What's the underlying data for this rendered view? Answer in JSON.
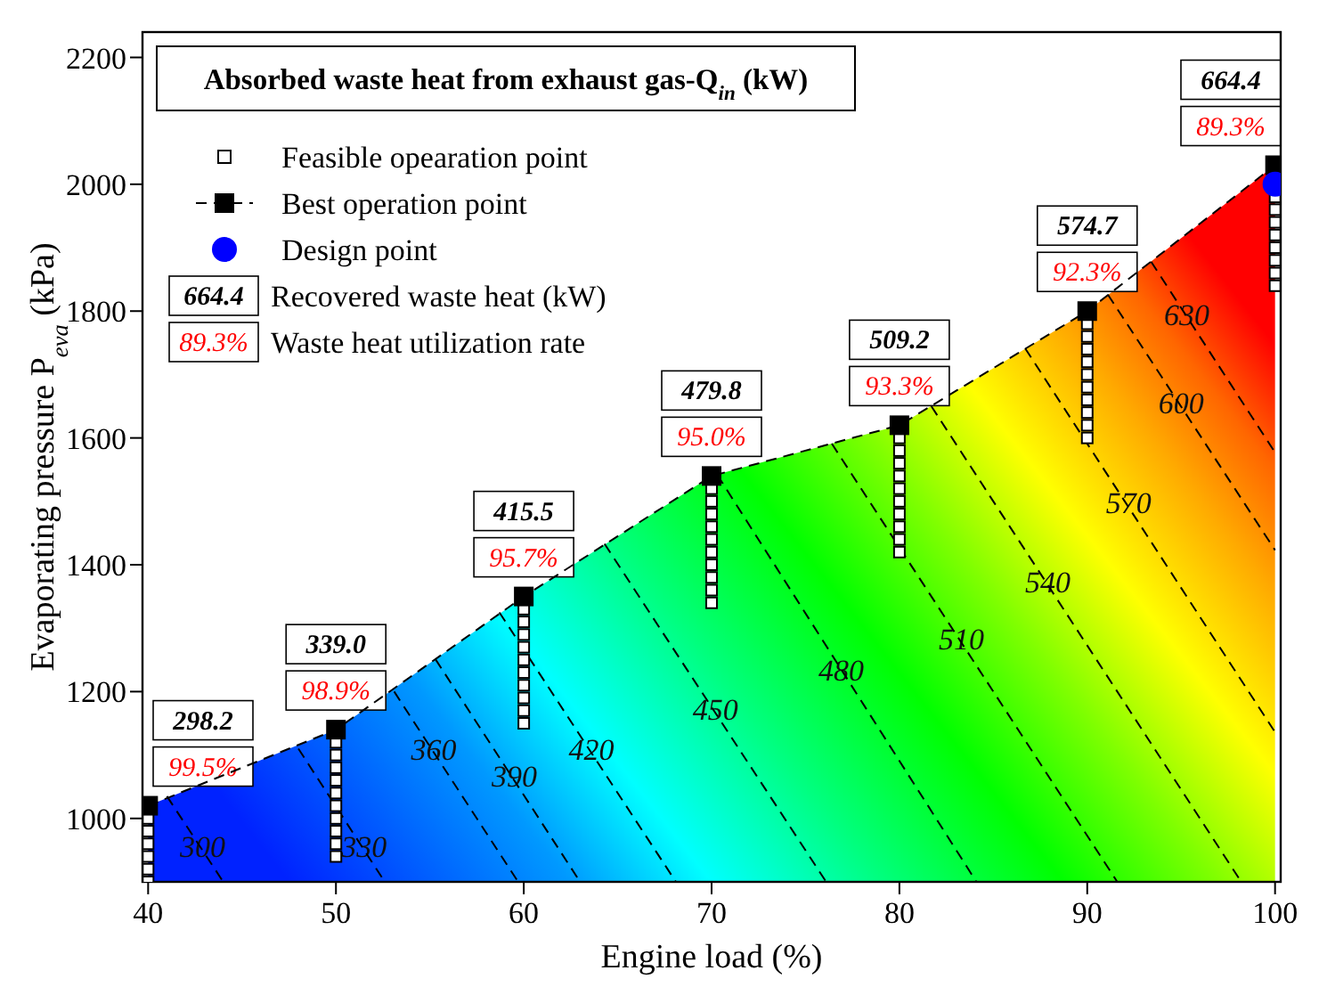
{
  "chart_data": {
    "type": "scatter",
    "title": "Absorbed waste heat from exhaust gas-Q$_{in}$ (kW)",
    "xlabel": "Engine load (%)",
    "ylabel": "Evaporating pressure P$_{eva}$ (kPa)",
    "xlim": [
      39.7,
      100.3
    ],
    "xticks": [
      40,
      50,
      60,
      70,
      80,
      90,
      100
    ],
    "ylim": [
      900,
      2240
    ],
    "yticks": [
      1000,
      1200,
      1400,
      1600,
      1800,
      2000,
      2200
    ],
    "legend": "top left",
    "series": [
      {
        "name": "Feasible opearation point",
        "marker": "square",
        "color": "#ffffff",
        "x": [
          40,
          40,
          40,
          40,
          40,
          40,
          50,
          50,
          50,
          50,
          50,
          50,
          50,
          50,
          50,
          50,
          60,
          60,
          60,
          60,
          60,
          60,
          60,
          60,
          60,
          60,
          70,
          70,
          70,
          70,
          70,
          70,
          70,
          70,
          70,
          70,
          80,
          80,
          80,
          80,
          80,
          80,
          80,
          80,
          80,
          80,
          90,
          90,
          90,
          90,
          90,
          90,
          90,
          90,
          90,
          90,
          100,
          100,
          100,
          100,
          100,
          100,
          100,
          100
        ],
        "values": [
          900,
          920,
          940,
          960,
          980,
          1000,
          940,
          960,
          980,
          1000,
          1020,
          1040,
          1060,
          1080,
          1100,
          1120,
          1150,
          1170,
          1190,
          1210,
          1230,
          1250,
          1270,
          1290,
          1310,
          1330,
          1340,
          1360,
          1380,
          1400,
          1420,
          1440,
          1460,
          1480,
          1500,
          1520,
          1420,
          1440,
          1460,
          1480,
          1500,
          1520,
          1540,
          1560,
          1580,
          1600,
          1600,
          1620,
          1640,
          1660,
          1680,
          1700,
          1720,
          1740,
          1760,
          1780,
          1840,
          1860,
          1880,
          1900,
          1920,
          1940,
          1960,
          1980
        ]
      },
      {
        "name": "Best operation point",
        "type": "line",
        "marker": "square",
        "line_style": "dashed",
        "color": "#000000",
        "x": [
          40,
          50,
          60,
          70,
          80,
          90,
          100
        ],
        "values": [
          1020,
          1140,
          1350,
          1540,
          1620,
          1800,
          2030
        ]
      },
      {
        "name": "Design point",
        "marker": "circle",
        "color": "#0000ff",
        "x": [
          100
        ],
        "values": [
          2000
        ]
      },
      {
        "type": "line",
        "marker": "none",
        "line_style": "dashed",
        "color": "#000000",
        "x": [
          41.0,
          44.0
        ],
        "values": [
          1035,
          900
        ]
      },
      {
        "type": "line",
        "marker": "none",
        "line_style": "dashed",
        "color": "#000000",
        "x": [
          48.0,
          52.6
        ],
        "values": [
          1110,
          900
        ]
      },
      {
        "type": "line",
        "marker": "none",
        "line_style": "dashed",
        "color": "#000000",
        "x": [
          53.1,
          59.7
        ],
        "values": [
          1200,
          900
        ]
      },
      {
        "type": "line",
        "marker": "none",
        "line_style": "dashed",
        "color": "#000000",
        "x": [
          55.3,
          63.0
        ],
        "values": [
          1251,
          900
        ]
      },
      {
        "type": "line",
        "marker": "none",
        "line_style": "dashed",
        "color": "#000000",
        "x": [
          58.7,
          68.1
        ],
        "values": [
          1325,
          900
        ]
      },
      {
        "type": "line",
        "marker": "none",
        "line_style": "dashed",
        "color": "#000000",
        "x": [
          64.3,
          76.1
        ],
        "values": [
          1433,
          900
        ]
      },
      {
        "type": "line",
        "marker": "none",
        "line_style": "dashed",
        "color": "#000000",
        "x": [
          70.3,
          84.1
        ],
        "values": [
          1542,
          900
        ]
      },
      {
        "type": "line",
        "marker": "none",
        "line_style": "dashed",
        "color": "#000000",
        "x": [
          76.4,
          91.6
        ],
        "values": [
          1591,
          900
        ]
      },
      {
        "type": "line",
        "marker": "none",
        "line_style": "dashed",
        "color": "#000000",
        "x": [
          81.7,
          98.2
        ],
        "values": [
          1650,
          900
        ]
      },
      {
        "type": "line",
        "marker": "none",
        "line_style": "dashed",
        "color": "#000000",
        "x": [
          86.7,
          100
        ],
        "values": [
          1741,
          1136
        ]
      },
      {
        "type": "line",
        "marker": "none",
        "line_style": "dashed",
        "color": "#000000",
        "x": [
          91.1,
          100
        ],
        "values": [
          1826,
          1423
        ]
      },
      {
        "type": "line",
        "marker": "none",
        "line_style": "dashed",
        "color": "#000000",
        "x": [
          93.4,
          100
        ],
        "values": [
          1878,
          1577
        ]
      }
    ],
    "annotations": [
      {
        "text": "298.2",
        "x": 40,
        "y": 1020
      },
      {
        "text": "339.0",
        "x": 50,
        "y": 1140
      },
      {
        "text": "415.5",
        "x": 60,
        "y": 1350
      },
      {
        "text": "479.8",
        "x": 70,
        "y": 1540
      },
      {
        "text": "509.2",
        "x": 80,
        "y": 1620
      },
      {
        "text": "574.7",
        "x": 90,
        "y": 1800
      },
      {
        "text": "664.4",
        "x": 100,
        "y": 2030
      },
      {
        "text": "99.5%",
        "x": 40,
        "y": 1020
      },
      {
        "text": "98.9%",
        "x": 50,
        "y": 1140
      },
      {
        "text": "95.7%",
        "x": 60,
        "y": 1350
      },
      {
        "text": "95.0%",
        "x": 70,
        "y": 1540
      },
      {
        "text": "93.3%",
        "x": 80,
        "y": 1620
      },
      {
        "text": "92.3%",
        "x": 90,
        "y": 1800
      },
      {
        "text": "89.3%",
        "x": 100,
        "y": 2030
      },
      {
        "text": "300",
        "x": 42.9,
        "y": 950
      },
      {
        "text": "330",
        "x": 51.5,
        "y": 950
      },
      {
        "text": "360",
        "x": 55.2,
        "y": 1103
      },
      {
        "text": "390",
        "x": 59.5,
        "y": 1061
      },
      {
        "text": "420",
        "x": 63.6,
        "y": 1103
      },
      {
        "text": "450",
        "x": 70.2,
        "y": 1167
      },
      {
        "text": "480",
        "x": 76.9,
        "y": 1228
      },
      {
        "text": "510",
        "x": 83.3,
        "y": 1278
      },
      {
        "text": "540",
        "x": 87.9,
        "y": 1367
      },
      {
        "text": "570",
        "x": 92.2,
        "y": 1492
      },
      {
        "text": "600",
        "x": 95,
        "y": 1650
      },
      {
        "text": "630",
        "x": 95.3,
        "y": 1789
      },
      "Recovered waste heat (kW)",
      "Waste heat utilization rate"
    ]
  }
}
